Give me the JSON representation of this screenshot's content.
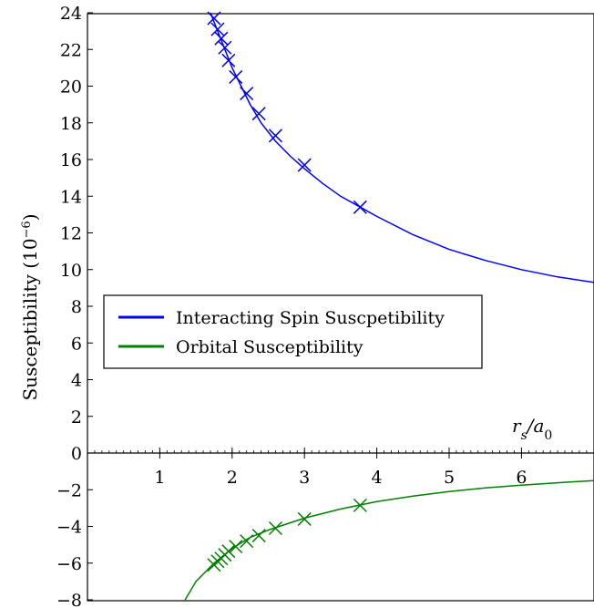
{
  "chart_data": {
    "type": "line",
    "xlabel": "r_s/a_0",
    "ylabel": "Susceptibility (10^-6)",
    "xlim": [
      0,
      7
    ],
    "ylim": [
      -8,
      24
    ],
    "grid": false,
    "legend_position": "center-left",
    "x_ticks": [
      1,
      2,
      3,
      4,
      5,
      6
    ],
    "y_ticks": [
      -8,
      -6,
      -4,
      -2,
      0,
      2,
      4,
      6,
      8,
      10,
      12,
      14,
      16,
      18,
      20,
      22,
      24
    ],
    "series": [
      {
        "name": "Interacting Spin Suscpetibility",
        "color": "#0000ff",
        "curve_x": [
          1.7,
          1.8,
          1.9,
          2.0,
          2.1,
          2.25,
          2.4,
          2.6,
          2.8,
          3.0,
          3.25,
          3.5,
          3.75,
          4.0,
          4.5,
          5.0,
          5.5,
          6.0,
          6.5,
          7.0
        ],
        "curve_y": [
          24.0,
          23.0,
          22.0,
          21.0,
          20.2,
          19.0,
          18.0,
          17.0,
          16.2,
          15.5,
          14.7,
          14.0,
          13.45,
          12.9,
          11.9,
          11.1,
          10.5,
          10.0,
          9.6,
          9.3
        ],
        "marker_x": [
          1.75,
          1.8,
          1.85,
          1.9,
          1.95,
          2.05,
          2.2,
          2.37,
          2.6,
          3.0,
          3.77
        ],
        "marker_y": [
          23.7,
          23.1,
          22.6,
          22.1,
          21.4,
          20.5,
          19.6,
          18.5,
          17.3,
          15.7,
          13.4
        ]
      },
      {
        "name": "Orbital Susceptibility",
        "color": "#008000",
        "curve_x": [
          1.35,
          1.5,
          1.75,
          2.0,
          2.25,
          2.5,
          3.0,
          3.5,
          4.0,
          4.5,
          5.0,
          5.5,
          6.0,
          6.5,
          7.0
        ],
        "curve_y": [
          -8.0,
          -7.0,
          -6.0,
          -5.2,
          -4.6,
          -4.2,
          -3.55,
          -3.05,
          -2.65,
          -2.35,
          -2.1,
          -1.9,
          -1.75,
          -1.62,
          -1.5
        ],
        "marker_x": [
          1.75,
          1.8,
          1.85,
          1.9,
          1.95,
          2.05,
          2.2,
          2.37,
          2.6,
          3.0,
          3.77
        ],
        "marker_y": [
          -6.1,
          -5.9,
          -5.75,
          -5.55,
          -5.35,
          -5.1,
          -4.8,
          -4.5,
          -4.1,
          -3.6,
          -2.85
        ]
      }
    ]
  }
}
